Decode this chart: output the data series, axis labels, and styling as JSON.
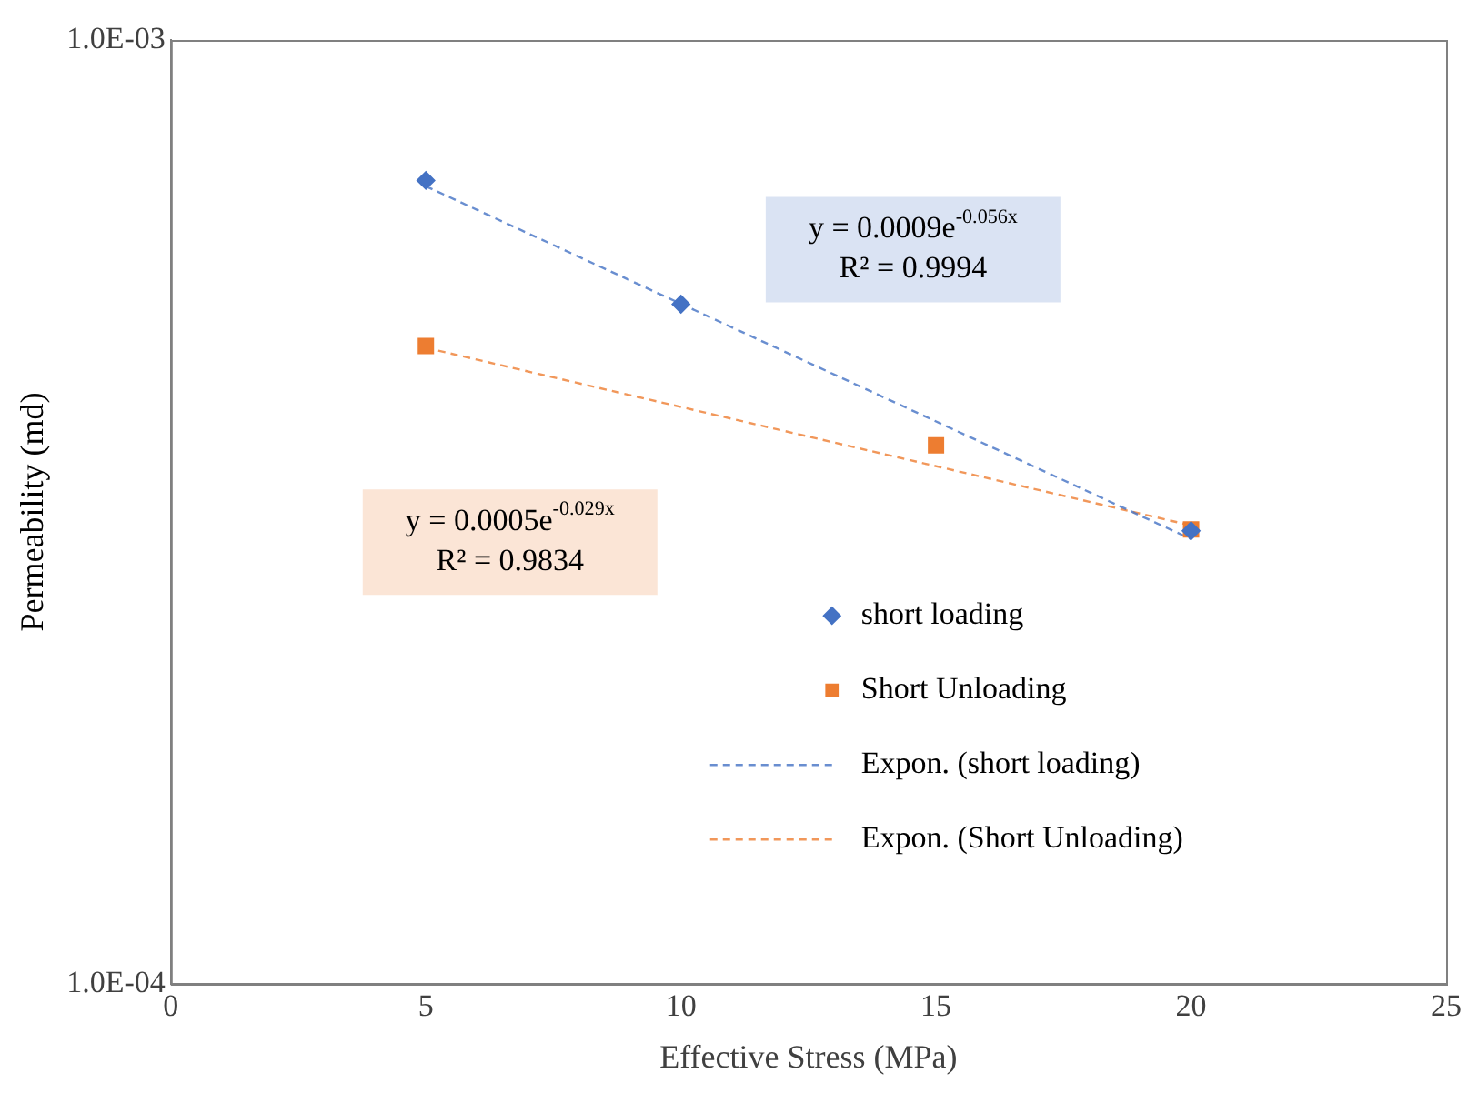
{
  "chart_data": {
    "type": "scatter",
    "xlabel": "Effective Stress (MPa)",
    "ylabel": "Permeability (md)",
    "xlim": [
      0,
      25
    ],
    "xticks": [
      0,
      5,
      10,
      15,
      20,
      25
    ],
    "ylim": [
      0.0001,
      0.001
    ],
    "yticks": [
      {
        "value": 0.0001,
        "label": "1.0E-04"
      },
      {
        "value": 0.001,
        "label": "1.0E-03"
      }
    ],
    "log": "y",
    "grid": false,
    "legend": "right",
    "series": [
      {
        "name": "short loading",
        "type": "scatter",
        "marker": "diamond",
        "color": "#4472c4",
        "x": [
          5,
          10,
          20
        ],
        "values": [
          0.00071,
          0.000525,
          0.000302
        ]
      },
      {
        "name": "Short Unloading",
        "type": "scatter",
        "marker": "square",
        "color": "#ed7d31",
        "x": [
          5,
          15,
          20
        ],
        "values": [
          0.000474,
          0.000372,
          0.000303
        ]
      },
      {
        "name": "Expon. (short loading)",
        "type": "line",
        "marker": "none",
        "line_style": "dashed",
        "color": "#4472c4",
        "x": [
          5,
          20
        ],
        "values": [
          0.0007,
          0.000296
        ]
      },
      {
        "name": "Expon. (Short Unloading)",
        "type": "line",
        "marker": "none",
        "line_style": "dashed",
        "color": "#ed7d31",
        "x": [
          5,
          20
        ],
        "values": [
          0.000472,
          0.000306
        ]
      }
    ],
    "annotations": [
      "y = 0.0009e$^{-0.056x}$\nR² = 0.9994",
      "y = 0.0005e$^{-0.029x}$\nR² = 0.9834"
    ]
  }
}
